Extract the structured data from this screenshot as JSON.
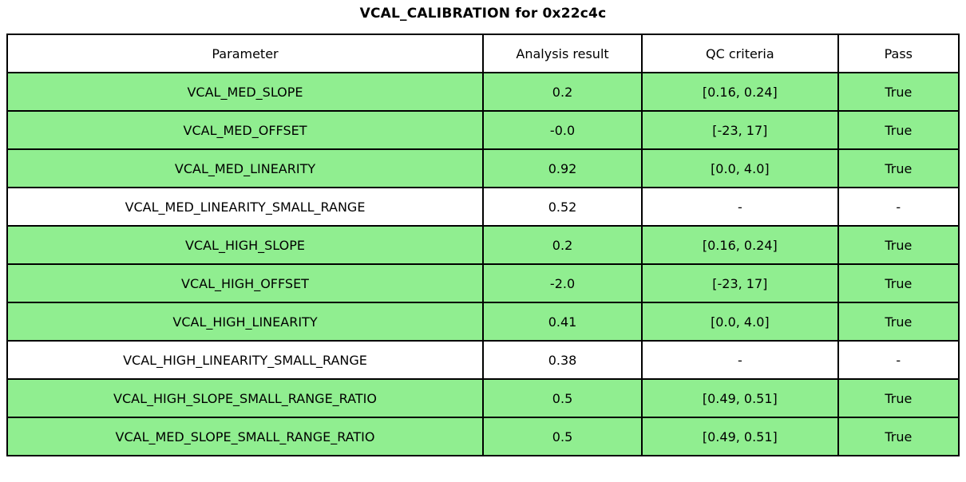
{
  "chart_data": {
    "type": "table",
    "title": "VCAL_CALIBRATION for 0x22c4c",
    "columns": [
      "Parameter",
      "Analysis result",
      "QC criteria",
      "Pass"
    ],
    "rows": [
      [
        "VCAL_MED_SLOPE",
        "0.2",
        "[0.16, 0.24]",
        "True"
      ],
      [
        "VCAL_MED_OFFSET",
        "-0.0",
        "[-23, 17]",
        "True"
      ],
      [
        "VCAL_MED_LINEARITY",
        "0.92",
        "[0.0, 4.0]",
        "True"
      ],
      [
        "VCAL_MED_LINEARITY_SMALL_RANGE",
        "0.52",
        "-",
        "-"
      ],
      [
        "VCAL_HIGH_SLOPE",
        "0.2",
        "[0.16, 0.24]",
        "True"
      ],
      [
        "VCAL_HIGH_OFFSET",
        "-2.0",
        "[-23, 17]",
        "True"
      ],
      [
        "VCAL_HIGH_LINEARITY",
        "0.41",
        "[0.0, 4.0]",
        "True"
      ],
      [
        "VCAL_HIGH_LINEARITY_SMALL_RANGE",
        "0.38",
        "-",
        "-"
      ],
      [
        "VCAL_HIGH_SLOPE_SMALL_RANGE_RATIO",
        "0.5",
        "[0.49, 0.51]",
        "True"
      ],
      [
        "VCAL_MED_SLOPE_SMALL_RANGE_RATIO",
        "0.5",
        "[0.49, 0.51]",
        "True"
      ]
    ],
    "row_highlight": [
      true,
      true,
      true,
      false,
      true,
      true,
      true,
      false,
      true,
      true
    ],
    "layout": {
      "legend_position": "none",
      "grid": true
    },
    "colors": {
      "pass_row_background": "#90EE90",
      "neutral_row_background": "#ffffff",
      "border": "#000000",
      "text": "#000000"
    }
  }
}
